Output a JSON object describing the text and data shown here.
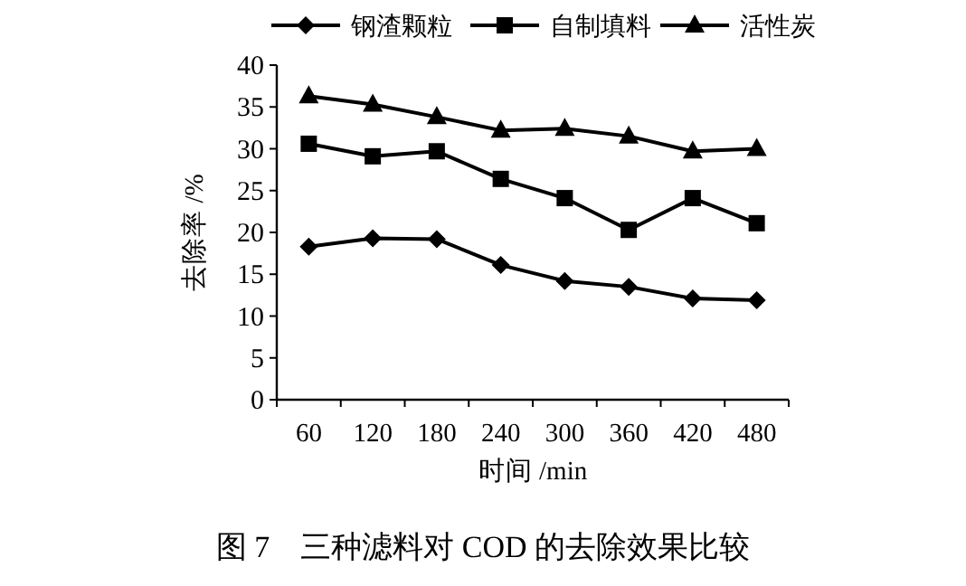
{
  "chart_data": {
    "type": "line",
    "categories": [
      "60",
      "120",
      "180",
      "240",
      "300",
      "360",
      "420",
      "480"
    ],
    "series": [
      {
        "name": "钢渣颗粒",
        "color": "#000000",
        "marker": "diamond",
        "values": [
          18.3,
          19.3,
          19.2,
          16.1,
          14.2,
          13.5,
          12.1,
          11.9
        ]
      },
      {
        "name": "自制填料",
        "color": "#000000",
        "marker": "square",
        "values": [
          30.6,
          29.1,
          29.7,
          26.4,
          24.1,
          20.3,
          24.1,
          21.1
        ]
      },
      {
        "name": "活性炭",
        "color": "#000000",
        "marker": "triangle",
        "values": [
          36.3,
          35.3,
          33.8,
          32.2,
          32.4,
          31.5,
          29.7,
          30.0
        ]
      }
    ],
    "ylim": [
      0,
      40
    ],
    "yticks": [
      0,
      5,
      10,
      15,
      20,
      25,
      30,
      35,
      40
    ],
    "xlabel": "时间 /min",
    "ylabel": "去除率 /%",
    "legend": "top",
    "grid": false,
    "line_style": "solid",
    "annotations": [
      "图 7　三种滤料对 COD 的去除效果比较"
    ]
  }
}
